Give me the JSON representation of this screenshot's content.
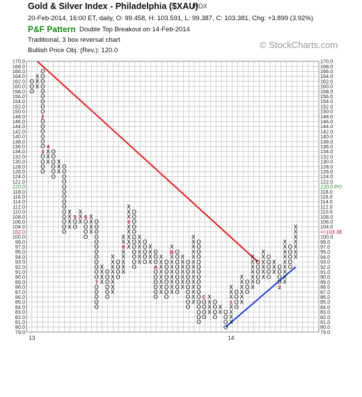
{
  "header": {
    "title": "Gold & Silver Index - Philadelphia ($XAU)",
    "exchange": "INDX",
    "quote": "20-Feb-2014, 16:00 ET, daily, O: 99.458, H: 103.591, L: 99.387, C: 103.381, Chg: +3.899 (3.92%)",
    "pattern_label": "P&F Pattern",
    "pattern_text": "Double Top Breakout on 14-Feb-2014",
    "chart_style": "Traditional, 3 box reversal chart",
    "price_objective": "Bullish Price Obj. (Rev.): 120.0",
    "watermark": "© StockCharts.com"
  },
  "colors": {
    "x_mark": "#000000",
    "o_mark": "#000000",
    "month_marker": "#b00030",
    "resistance_line": "#e02020",
    "support_line": "#1a3ee0",
    "price_objective": "#1a8a1a",
    "last_price": "#b00030",
    "grid": "#b8b8b8"
  },
  "chart_data": {
    "type": "point-and-figure",
    "box_size": 2,
    "reversal": 3,
    "y_range": [
      79,
      170
    ],
    "y_ticks": [
      "79.0",
      "80.0",
      "81.0",
      "82.0",
      "83.0",
      "84.0",
      "85.0",
      "86.0",
      "87.0",
      "88.0",
      "89.0",
      "90.0",
      "91.0",
      "92.0",
      "93.0",
      "94.0",
      "95.0",
      "97.0",
      "99.0",
      "100.0",
      "102.0",
      "104.0",
      "106.0",
      "108.0",
      "110.0",
      "112.0",
      "114.0",
      "116.0",
      "118.0",
      "120.0",
      "122.0",
      "124.0",
      "126.0",
      "128.0",
      "130.0",
      "132.0",
      "134.0",
      "136.0",
      "138.0",
      "140.0",
      "142.0",
      "144.0",
      "146.0",
      "148.0",
      "150.0",
      "152.0",
      "154.0",
      "156.0",
      "158.0",
      "160.0",
      "162.0",
      "164.0",
      "166.0",
      "168.0",
      "170.0"
    ],
    "x_labels": [
      {
        "text": "13",
        "col": 0
      },
      {
        "text": "14",
        "col": 37
      }
    ],
    "columns": [
      {
        "type": "O",
        "top": 162.0,
        "bottom": 158.0
      },
      {
        "type": "X",
        "top": 164.0,
        "bottom": 160.0
      },
      {
        "type": "O",
        "top": 166.0,
        "bottom": 126.0,
        "markers": [
          {
            "text": "1",
            "at": 168.0
          },
          {
            "text": "2",
            "at": 148.0
          },
          {
            "text": "3",
            "at": 134.0
          }
        ]
      },
      {
        "type": "X",
        "top": 136.0,
        "bottom": 130.0,
        "markers": [
          {
            "text": "4",
            "at": 136.0
          }
        ]
      },
      {
        "type": "O",
        "top": 134.0,
        "bottom": 124.0
      },
      {
        "type": "X",
        "top": 130.0,
        "bottom": 126.0
      },
      {
        "type": "O",
        "top": 128.0,
        "bottom": 102.0
      },
      {
        "type": "X",
        "top": 110.0,
        "bottom": 104.0
      },
      {
        "type": "O",
        "top": 108.0,
        "bottom": 104.0,
        "markers": [
          {
            "text": "5",
            "at": 108.0
          }
        ]
      },
      {
        "type": "X",
        "top": 110.0,
        "bottom": 106.0
      },
      {
        "type": "O",
        "top": 108.0,
        "bottom": 100.0,
        "markers": [
          {
            "text": "6",
            "at": 108.0
          }
        ]
      },
      {
        "type": "X",
        "top": 108.0,
        "bottom": 102.0
      },
      {
        "type": "O",
        "top": 106.0,
        "bottom": 84.0,
        "markers": [
          {
            "text": "7",
            "at": 89.0
          }
        ]
      },
      {
        "type": "X",
        "top": 92.0,
        "bottom": 89.0
      },
      {
        "type": "O",
        "top": 91.0,
        "bottom": 86.0
      },
      {
        "type": "X",
        "top": 94.0,
        "bottom": 87.0
      },
      {
        "type": "O",
        "top": 93.0,
        "bottom": 90.0
      },
      {
        "type": "X",
        "top": 100.0,
        "bottom": 91.0,
        "markers": [
          {
            "text": "8",
            "at": 97.0
          }
        ]
      },
      {
        "type": "X",
        "top": 112.0,
        "bottom": 97.0,
        "markers": [
          {
            "text": "9",
            "at": 106.0
          }
        ]
      },
      {
        "type": "O",
        "top": 110.0,
        "bottom": 92.0
      },
      {
        "type": "X",
        "top": 100.0,
        "bottom": 93.0
      },
      {
        "type": "O",
        "top": 99.0,
        "bottom": 93.0
      },
      {
        "type": "X",
        "top": 97.0,
        "bottom": 93.0
      },
      {
        "type": "O",
        "top": 95.0,
        "bottom": 86.0,
        "markers": [
          {
            "text": "A",
            "at": 92.0
          }
        ]
      },
      {
        "type": "X",
        "top": 94.0,
        "bottom": 87.0
      },
      {
        "type": "O",
        "top": 93.0,
        "bottom": 86.0
      },
      {
        "type": "X",
        "top": 97.0,
        "bottom": 87.0,
        "markers": [
          {
            "text": "B",
            "at": 95.0
          }
        ]
      },
      {
        "type": "O",
        "top": 95.0,
        "bottom": 87.0
      },
      {
        "type": "X",
        "top": 94.0,
        "bottom": 88.0
      },
      {
        "type": "O",
        "top": 93.0,
        "bottom": 84.0
      },
      {
        "type": "X",
        "top": 100.0,
        "bottom": 85.0
      },
      {
        "type": "O",
        "top": 99.0,
        "bottom": 81.0
      },
      {
        "type": "O",
        "top": 86.0,
        "bottom": 82.0,
        "markers": [
          {
            "text": "C",
            "at": 86.0
          }
        ]
      },
      {
        "type": "X",
        "top": 86.0,
        "bottom": 83.0
      },
      {
        "type": "O",
        "top": 85.0,
        "bottom": 82.0
      },
      {
        "type": "X",
        "top": 84.0,
        "bottom": 83.0
      },
      {
        "type": "O",
        "top": 83.0,
        "bottom": 80.0
      },
      {
        "type": "X",
        "top": 88.0,
        "bottom": 81.0,
        "markers": [
          {
            "text": "1",
            "at": 85.0
          }
        ]
      },
      {
        "type": "O",
        "top": 87.0,
        "bottom": 84.0
      },
      {
        "type": "X",
        "top": 90.0,
        "bottom": 85.0
      },
      {
        "type": "O",
        "top": 89.0,
        "bottom": 87.0
      },
      {
        "type": "X",
        "top": 94.0,
        "bottom": 88.0
      },
      {
        "type": "O",
        "top": 93.0,
        "bottom": 89.0
      },
      {
        "type": "X",
        "top": 95.0,
        "bottom": 90.0
      },
      {
        "type": "O",
        "top": 94.0,
        "bottom": 90.0
      },
      {
        "type": "X",
        "top": 93.0,
        "bottom": 91.0
      },
      {
        "type": "O",
        "top": 92.0,
        "bottom": 88.0,
        "markers": [
          {
            "text": "2",
            "at": 88.0
          }
        ]
      },
      {
        "type": "X",
        "top": 99.0,
        "bottom": 89.0
      },
      {
        "type": "O",
        "top": 97.0,
        "bottom": 92.0
      },
      {
        "type": "X",
        "top": 104.0,
        "bottom": 94.0
      }
    ],
    "resistance_line": {
      "from": {
        "col": 1,
        "price": 170.0
      },
      "to": {
        "col": 42,
        "price": 93.0
      }
    },
    "support_line": {
      "from": {
        "col": 36,
        "price": 80.0
      },
      "to": {
        "col": 49,
        "price": 92.0
      }
    },
    "price_objective": {
      "value": 120.0,
      "label_left": "120.0",
      "label_right": "120.0 PO"
    },
    "last_price": {
      "value": 102.0,
      "label_left": "102.0",
      "label_right": "<<103.38"
    }
  }
}
